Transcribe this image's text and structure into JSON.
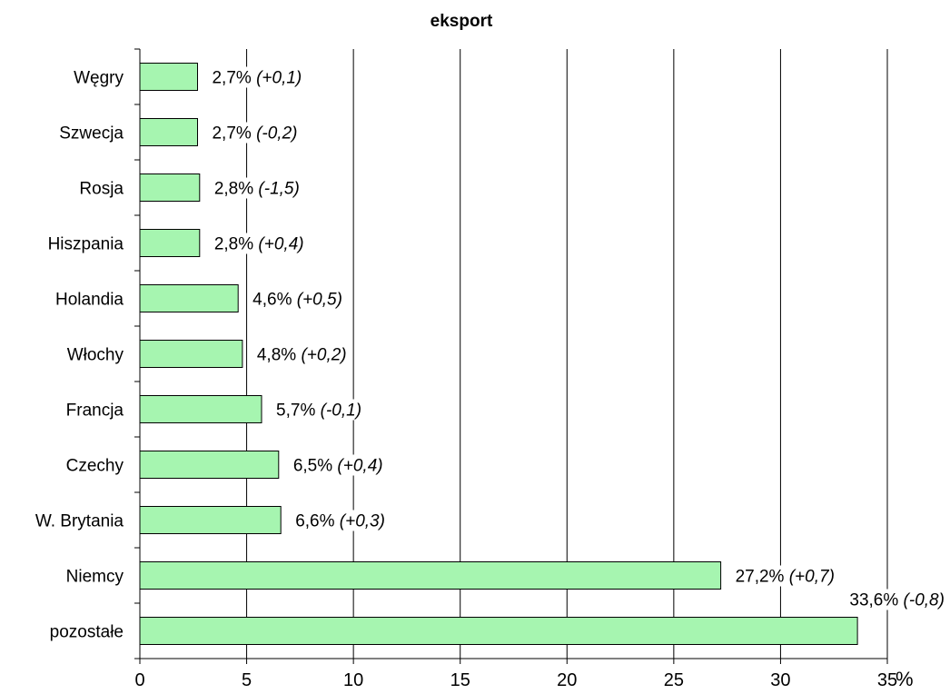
{
  "chart_data": {
    "type": "bar",
    "orientation": "horizontal",
    "title": "eksport",
    "x_unit": "%",
    "xlim": [
      0,
      35
    ],
    "x_ticks": [
      0,
      5,
      10,
      15,
      20,
      25,
      30,
      35
    ],
    "grid": true,
    "bar_color": "#a6f5b0",
    "categories": [
      "Węgry",
      "Szwecja",
      "Rosja",
      "Hiszpania",
      "Holandia",
      "Włochy",
      "Francja",
      "Czechy",
      "W. Brytania",
      "Niemcy",
      "pozostałe"
    ],
    "values": [
      2.7,
      2.7,
      2.8,
      2.8,
      4.6,
      4.8,
      5.7,
      6.5,
      6.6,
      27.2,
      33.6
    ],
    "value_labels": [
      "2,7%",
      "2,7%",
      "2,8%",
      "2,8%",
      "4,6%",
      "4,8%",
      "5,7%",
      "6,5%",
      "6,6%",
      "27,2%",
      "33,6%"
    ],
    "change_labels": [
      "(+0,1)",
      "(-0,2)",
      "(-1,5)",
      "(+0,4)",
      "(+0,5)",
      "(+0,2)",
      "(-0,1)",
      "(+0,4)",
      "(+0,3)",
      "(+0,7)",
      "(-0,8)"
    ]
  }
}
